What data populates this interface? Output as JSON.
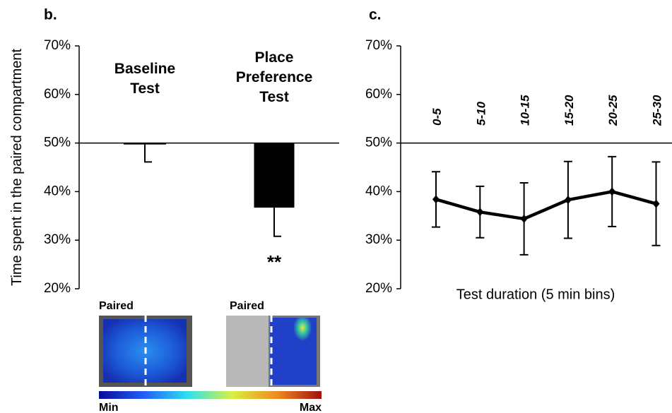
{
  "chart_data": [
    {
      "type": "bar",
      "panel_label": "b.",
      "ylabel": "Time spent in the paired compartment",
      "categories": [
        "Baseline Test",
        "Place Preference Test"
      ],
      "values": [
        49.7,
        36.7
      ],
      "errors": [
        3.6,
        5.9
      ],
      "color": "#000000",
      "baseline": 50,
      "annotation": "**",
      "ylim": [
        20,
        70
      ],
      "yticks": [
        {
          "value": 20,
          "label": "20%"
        },
        {
          "value": 30,
          "label": "30%"
        },
        {
          "value": 40,
          "label": "40%"
        },
        {
          "value": 50,
          "label": "50%"
        },
        {
          "value": 60,
          "label": "60%"
        },
        {
          "value": 70,
          "label": "70%"
        }
      ],
      "inset_labels": [
        "Paired",
        "Paired"
      ],
      "colorbar_labels": [
        "Min",
        "Max"
      ]
    },
    {
      "type": "line",
      "panel_label": "c.",
      "xlabel": "Test duration (5 min bins)",
      "categories": [
        "0-5",
        "5-10",
        "10-15",
        "15-20",
        "20-25",
        "25-30"
      ],
      "values": [
        38.4,
        35.8,
        34.4,
        38.3,
        40.0,
        37.5
      ],
      "errors": [
        5.7,
        5.3,
        7.4,
        7.9,
        7.2,
        8.6
      ],
      "color": "#000000",
      "baseline": 50,
      "ylim": [
        20,
        70
      ],
      "yticks": [
        {
          "value": 20,
          "label": "20%"
        },
        {
          "value": 30,
          "label": "30%"
        },
        {
          "value": 40,
          "label": "40%"
        },
        {
          "value": 50,
          "label": "50%"
        },
        {
          "value": 60,
          "label": "60%"
        },
        {
          "value": 70,
          "label": "70%"
        }
      ]
    }
  ]
}
